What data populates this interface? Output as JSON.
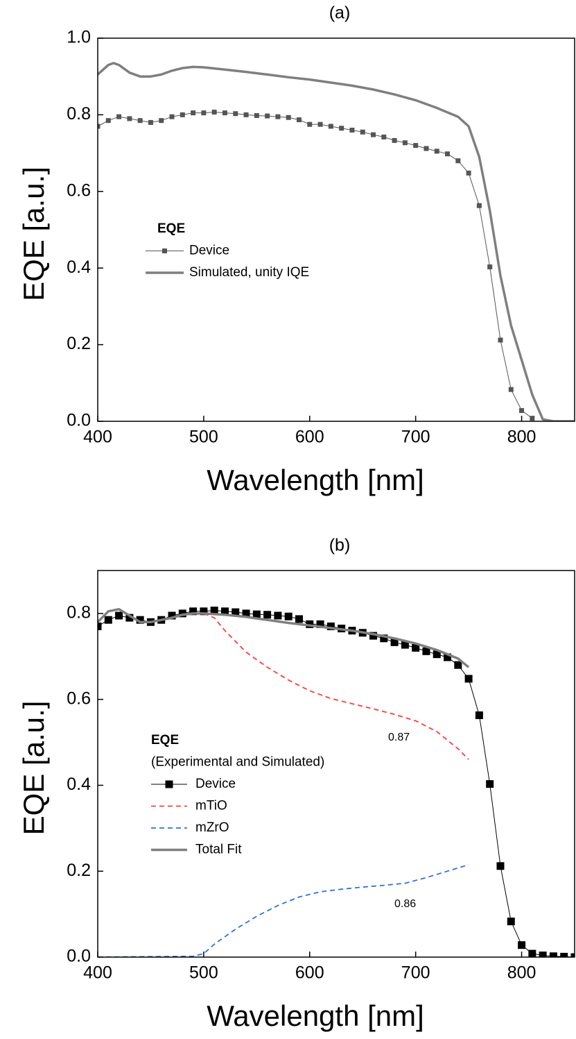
{
  "chart_data": [
    {
      "type": "line",
      "title": "(a)",
      "xlabel": "Wavelength [nm]",
      "ylabel": "EQE [a.u.]",
      "xlim": [
        400,
        850
      ],
      "ylim": [
        0,
        1.0
      ],
      "xticks": [
        400,
        500,
        600,
        700,
        800
      ],
      "yticks": [
        {
          "value": 0,
          "label": "0.0"
        },
        0.2,
        0.4,
        0.6,
        0.8,
        {
          "value": 1,
          "label": "1.0"
        }
      ],
      "legend_title": "EQE",
      "series": [
        {
          "name": "Device",
          "color": "#555555",
          "linestyle": "solid",
          "linewidth": 1,
          "marker": "square",
          "x": [
            400,
            410,
            420,
            430,
            440,
            450,
            460,
            470,
            480,
            490,
            500,
            510,
            520,
            530,
            540,
            550,
            560,
            570,
            580,
            590,
            600,
            610,
            620,
            630,
            640,
            650,
            660,
            670,
            680,
            690,
            700,
            710,
            720,
            730,
            740,
            750,
            760,
            770,
            780,
            790,
            800,
            810
          ],
          "values": [
            0.77,
            0.785,
            0.795,
            0.79,
            0.785,
            0.78,
            0.785,
            0.795,
            0.8,
            0.805,
            0.805,
            0.807,
            0.805,
            0.803,
            0.8,
            0.798,
            0.797,
            0.795,
            0.793,
            0.787,
            0.775,
            0.775,
            0.77,
            0.765,
            0.76,
            0.755,
            0.748,
            0.742,
            0.733,
            0.727,
            0.72,
            0.712,
            0.705,
            0.698,
            0.68,
            0.648,
            0.563,
            0.403,
            0.212,
            0.083,
            0.028,
            0.008
          ]
        },
        {
          "name": "Simulated, unity IQE",
          "color": "#7f7f7f",
          "linestyle": "solid",
          "linewidth": 3.5,
          "x": [
            400,
            410,
            415,
            420,
            430,
            440,
            450,
            460,
            470,
            480,
            490,
            500,
            520,
            540,
            560,
            580,
            600,
            620,
            640,
            660,
            680,
            700,
            720,
            740,
            750,
            760,
            770,
            780,
            790,
            800,
            810,
            820,
            830,
            850
          ],
          "values": [
            0.905,
            0.93,
            0.935,
            0.93,
            0.91,
            0.9,
            0.9,
            0.905,
            0.915,
            0.922,
            0.925,
            0.924,
            0.918,
            0.912,
            0.905,
            0.898,
            0.892,
            0.884,
            0.876,
            0.866,
            0.853,
            0.838,
            0.818,
            0.795,
            0.77,
            0.69,
            0.55,
            0.38,
            0.25,
            0.16,
            0.07,
            0.005,
            0,
            0
          ]
        }
      ]
    },
    {
      "type": "line",
      "title": "(b)",
      "xlabel": "Wavelength [nm]",
      "ylabel": "EQE [a.u.]",
      "xlim": [
        400,
        850
      ],
      "ylim": [
        0,
        0.9
      ],
      "xticks": [
        400,
        500,
        600,
        700,
        800
      ],
      "yticks": [
        {
          "value": 0,
          "label": "0.0"
        },
        0.2,
        0.4,
        0.6,
        0.8
      ],
      "legend_title": "EQE",
      "legend_subtitle": "(Experimental and Simulated)",
      "series": [
        {
          "name": "Device",
          "color": "#000000",
          "linestyle": "solid",
          "linewidth": 1,
          "marker": "square",
          "x": [
            400,
            410,
            420,
            430,
            440,
            450,
            460,
            470,
            480,
            490,
            500,
            510,
            520,
            530,
            540,
            550,
            560,
            570,
            580,
            590,
            600,
            610,
            620,
            630,
            640,
            650,
            660,
            670,
            680,
            690,
            700,
            710,
            720,
            730,
            740,
            750,
            760,
            770,
            780,
            790,
            800,
            810,
            820,
            830,
            840,
            850
          ],
          "values": [
            0.77,
            0.785,
            0.795,
            0.79,
            0.785,
            0.78,
            0.785,
            0.795,
            0.8,
            0.805,
            0.805,
            0.807,
            0.805,
            0.803,
            0.8,
            0.798,
            0.797,
            0.795,
            0.793,
            0.787,
            0.775,
            0.775,
            0.77,
            0.765,
            0.76,
            0.755,
            0.748,
            0.742,
            0.733,
            0.727,
            0.72,
            0.712,
            0.705,
            0.698,
            0.68,
            0.648,
            0.563,
            0.403,
            0.212,
            0.083,
            0.028,
            0.008,
            0.004,
            0.002,
            0.001,
            0
          ]
        },
        {
          "name": "mTiO",
          "color": "#ff3b3b",
          "linestyle": "dashed",
          "linewidth": 1.8,
          "x": [
            500,
            510,
            520,
            540,
            560,
            580,
            600,
            620,
            640,
            660,
            680,
            700,
            720,
            740,
            750
          ],
          "values": [
            0.8,
            0.79,
            0.76,
            0.71,
            0.675,
            0.645,
            0.62,
            0.602,
            0.59,
            0.578,
            0.565,
            0.55,
            0.525,
            0.485,
            0.46
          ]
        },
        {
          "name": "mZrO",
          "color": "#2f6fe0",
          "linestyle": "dashed",
          "linewidth": 1.8,
          "x": [
            400,
            490,
            500,
            510,
            530,
            550,
            570,
            590,
            610,
            630,
            650,
            670,
            690,
            710,
            730,
            750
          ],
          "values": [
            0,
            0.002,
            0.008,
            0.03,
            0.065,
            0.095,
            0.12,
            0.14,
            0.152,
            0.158,
            0.163,
            0.167,
            0.172,
            0.185,
            0.2,
            0.215
          ]
        },
        {
          "name": "Total Fit",
          "color": "#7f7f7f",
          "linestyle": "solid",
          "linewidth": 3.5,
          "x": [
            400,
            410,
            420,
            430,
            440,
            450,
            460,
            470,
            480,
            490,
            500,
            520,
            540,
            560,
            580,
            600,
            620,
            640,
            660,
            680,
            700,
            720,
            740,
            750
          ],
          "values": [
            0.78,
            0.805,
            0.81,
            0.795,
            0.78,
            0.78,
            0.785,
            0.79,
            0.797,
            0.8,
            0.8,
            0.797,
            0.792,
            0.785,
            0.778,
            0.772,
            0.766,
            0.76,
            0.752,
            0.742,
            0.73,
            0.715,
            0.695,
            0.675
          ]
        }
      ],
      "annotations": [
        {
          "text": "0.87",
          "color": "#ff2020"
        },
        {
          "text": "0.86",
          "color": "#1f2fff"
        }
      ]
    }
  ]
}
